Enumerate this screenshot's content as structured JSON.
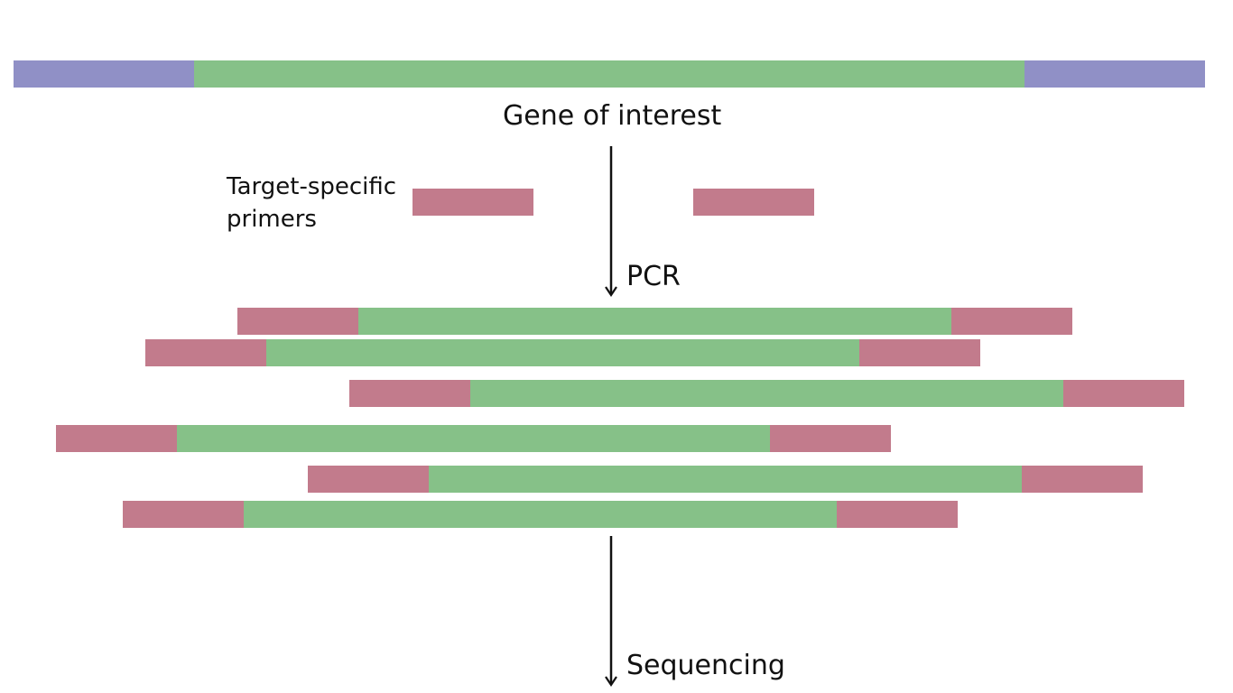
{
  "labels": {
    "gene_of_interest": "Gene of interest",
    "primers_line1": "Target-specific",
    "primers_line2": "primers",
    "pcr": "PCR",
    "sequencing": "Sequencing"
  },
  "colors": {
    "flank": "#9090c6",
    "gene": "#86c188",
    "primer": "#c27b8c",
    "arrow": "#111111",
    "background": "#ffffff"
  },
  "reads_count": 6
}
